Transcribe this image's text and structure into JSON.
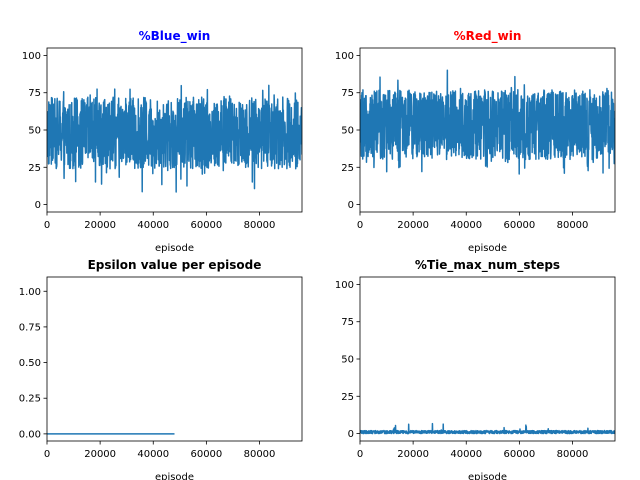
{
  "chart_data": [
    {
      "type": "line",
      "title": "%Blue_win",
      "title_color": "#0000ff",
      "xlabel": "episode",
      "ylabel": "",
      "xlim": [
        0,
        96000
      ],
      "ylim": [
        -5,
        105
      ],
      "xticks": [
        0,
        20000,
        40000,
        60000,
        80000
      ],
      "yticks": [
        0,
        25,
        50,
        75,
        100
      ],
      "series": [
        {
          "color": "#1f77b4",
          "x_range": [
            0,
            96000
          ],
          "mean": 46,
          "band": [
            24,
            72
          ],
          "spike_low": 8,
          "spike_high": 80
        }
      ]
    },
    {
      "type": "line",
      "title": "%Red_win",
      "title_color": "#ff0000",
      "xlabel": "episode",
      "ylabel": "",
      "xlim": [
        0,
        96000
      ],
      "ylim": [
        -5,
        105
      ],
      "xticks": [
        0,
        20000,
        40000,
        60000,
        80000
      ],
      "yticks": [
        0,
        25,
        50,
        75,
        100
      ],
      "series": [
        {
          "color": "#1f77b4",
          "x_range": [
            0,
            96000
          ],
          "mean": 54,
          "band": [
            30,
            77
          ],
          "spike_low": 20,
          "spike_high": 92
        }
      ]
    },
    {
      "type": "line",
      "title": "Epsilon value per episode",
      "title_color": "#000000",
      "xlabel": "episode",
      "ylabel": "",
      "xlim": [
        0,
        96000
      ],
      "ylim": [
        -0.05,
        1.1
      ],
      "xticks": [
        0,
        20000,
        40000,
        60000,
        80000
      ],
      "yticks": [
        0.0,
        0.25,
        0.5,
        0.75,
        1.0
      ],
      "ytick_labels": [
        "0.00",
        "0.25",
        "0.50",
        "0.75",
        "1.00"
      ],
      "series": [
        {
          "color": "#1f77b4",
          "x": [
            0,
            48000
          ],
          "y": [
            0.0,
            0.0
          ]
        }
      ]
    },
    {
      "type": "line",
      "title": "%Tie_max_num_steps",
      "title_color": "#000000",
      "xlabel": "episode",
      "ylabel": "",
      "xlim": [
        0,
        96000
      ],
      "ylim": [
        -5,
        105
      ],
      "xticks": [
        0,
        20000,
        40000,
        60000,
        80000
      ],
      "yticks": [
        0,
        25,
        50,
        75,
        100
      ],
      "series": [
        {
          "color": "#1f77b4",
          "x_range": [
            0,
            96000
          ],
          "mean": 0.6,
          "band": [
            0,
            2
          ],
          "spike_low": 0,
          "spike_high": 7
        }
      ]
    }
  ]
}
